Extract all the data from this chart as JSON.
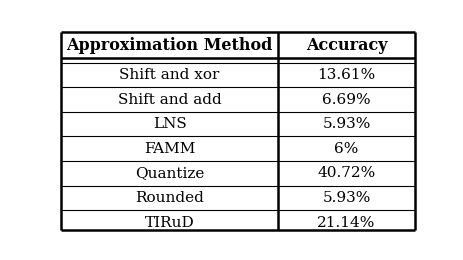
{
  "col_headers": [
    "Approximation Method",
    "Accuracy"
  ],
  "rows": [
    [
      "Shift and xor",
      "13.61%"
    ],
    [
      "Shift and add",
      "6.69%"
    ],
    [
      "LNS",
      "5.93%"
    ],
    [
      "FAMM",
      "6%"
    ],
    [
      "Quantize",
      "40.72%"
    ],
    [
      "Rounded",
      "5.93%"
    ],
    [
      "TIRuD",
      "21.14%"
    ]
  ],
  "header_fontsize": 11.5,
  "cell_fontsize": 11,
  "bg_color": "#ffffff",
  "text_color": "#000000",
  "figsize": [
    4.64,
    2.6
  ],
  "dpi": 100,
  "col_split": 0.615
}
